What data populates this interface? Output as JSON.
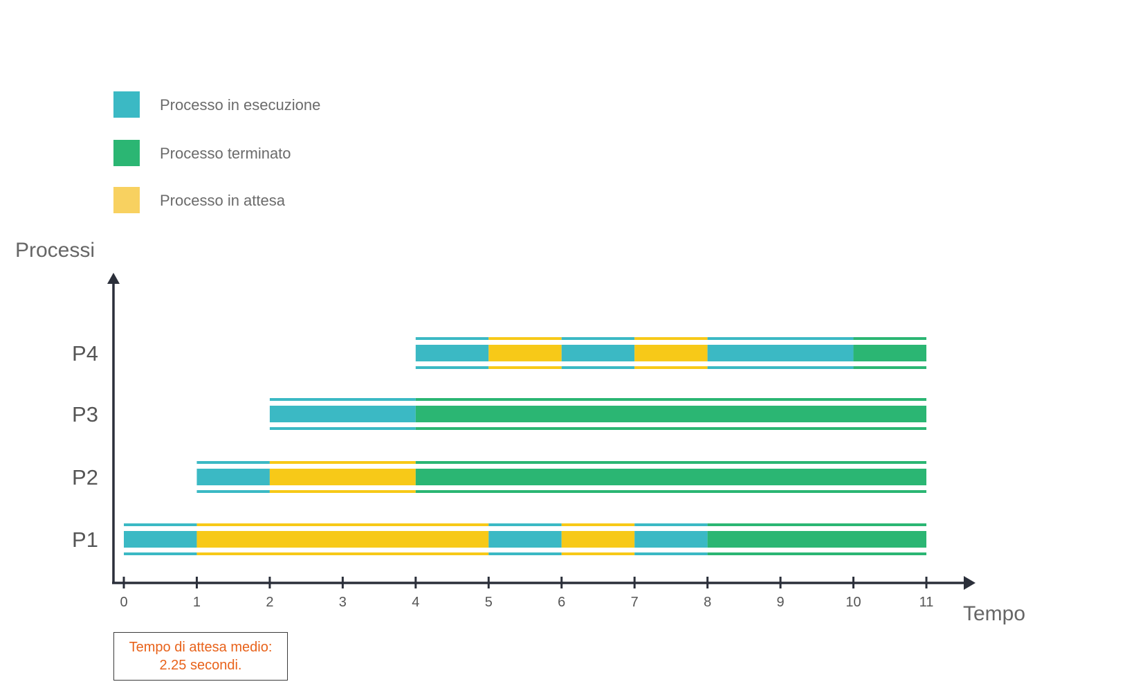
{
  "chart_data": {
    "type": "gantt",
    "ylabel": "Processi",
    "xlabel": "Tempo",
    "xlim": [
      0,
      11
    ],
    "x_ticks": [
      0,
      1,
      2,
      3,
      4,
      5,
      6,
      7,
      8,
      9,
      10,
      11
    ],
    "states": [
      {
        "key": "running",
        "label": "Processo in esecuzione",
        "color": "#3bb9c4"
      },
      {
        "key": "terminated",
        "label": "Processo terminato",
        "color": "#2bb673"
      },
      {
        "key": "waiting",
        "label": "Processo in attesa",
        "color": "#f7c918",
        "legend_color": "#f8d160"
      }
    ],
    "rows": [
      {
        "name": "P1",
        "segments": [
          {
            "start": 0,
            "end": 1,
            "state": "running"
          },
          {
            "start": 1,
            "end": 5,
            "state": "waiting"
          },
          {
            "start": 5,
            "end": 6,
            "state": "running"
          },
          {
            "start": 6,
            "end": 7,
            "state": "waiting"
          },
          {
            "start": 7,
            "end": 8,
            "state": "running"
          },
          {
            "start": 8,
            "end": 11,
            "state": "terminated"
          }
        ]
      },
      {
        "name": "P2",
        "segments": [
          {
            "start": 1,
            "end": 2,
            "state": "running"
          },
          {
            "start": 2,
            "end": 4,
            "state": "waiting"
          },
          {
            "start": 4,
            "end": 11,
            "state": "terminated"
          }
        ]
      },
      {
        "name": "P3",
        "segments": [
          {
            "start": 2,
            "end": 4,
            "state": "running"
          },
          {
            "start": 4,
            "end": 11,
            "state": "terminated"
          }
        ]
      },
      {
        "name": "P4",
        "segments": [
          {
            "start": 4,
            "end": 5,
            "state": "running"
          },
          {
            "start": 5,
            "end": 6,
            "state": "waiting"
          },
          {
            "start": 6,
            "end": 7,
            "state": "running"
          },
          {
            "start": 7,
            "end": 8,
            "state": "waiting"
          },
          {
            "start": 8,
            "end": 10,
            "state": "running"
          },
          {
            "start": 10,
            "end": 11,
            "state": "terminated"
          }
        ]
      }
    ],
    "annotation": {
      "line1": "Tempo di attesa medio:",
      "line2": "2.25 secondi."
    },
    "axis_color": "#2b2f3a"
  }
}
